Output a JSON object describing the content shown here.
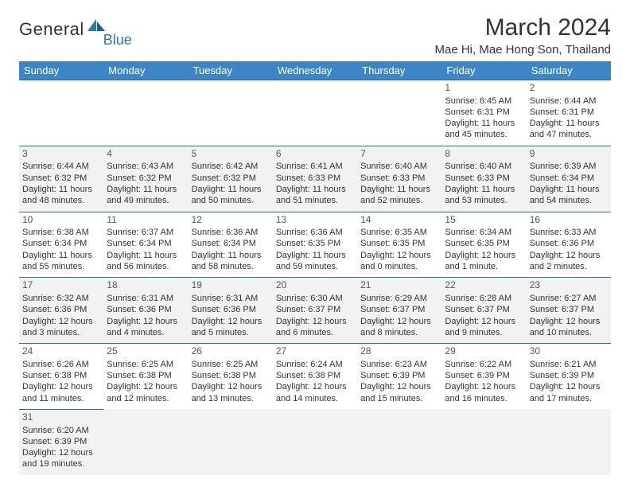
{
  "brand": {
    "general": "Genera",
    "l": "l",
    "blue": "Blue"
  },
  "title": "March 2024",
  "location": "Mae Hi, Mae Hong Son, Thailand",
  "weekdays": [
    "Sunday",
    "Monday",
    "Tuesday",
    "Wednesday",
    "Thursday",
    "Friday",
    "Saturday"
  ],
  "colors": {
    "header_bg": "#3d86c6",
    "header_fg": "#ffffff",
    "row_alt_bg": "#f2f2f2",
    "divider": "#2a6aa8",
    "brand_blue": "#2a7ab0"
  },
  "typography": {
    "title_fontsize": 30,
    "location_fontsize": 15,
    "weekday_fontsize": 13,
    "cell_fontsize": 11
  },
  "weeks": [
    [
      null,
      null,
      null,
      null,
      null,
      {
        "n": "1",
        "sr": "Sunrise: 6:45 AM",
        "ss": "Sunset: 6:31 PM",
        "dl": "Daylight: 11 hours and 45 minutes."
      },
      {
        "n": "2",
        "sr": "Sunrise: 6:44 AM",
        "ss": "Sunset: 6:31 PM",
        "dl": "Daylight: 11 hours and 47 minutes."
      }
    ],
    [
      {
        "n": "3",
        "sr": "Sunrise: 6:44 AM",
        "ss": "Sunset: 6:32 PM",
        "dl": "Daylight: 11 hours and 48 minutes."
      },
      {
        "n": "4",
        "sr": "Sunrise: 6:43 AM",
        "ss": "Sunset: 6:32 PM",
        "dl": "Daylight: 11 hours and 49 minutes."
      },
      {
        "n": "5",
        "sr": "Sunrise: 6:42 AM",
        "ss": "Sunset: 6:32 PM",
        "dl": "Daylight: 11 hours and 50 minutes."
      },
      {
        "n": "6",
        "sr": "Sunrise: 6:41 AM",
        "ss": "Sunset: 6:33 PM",
        "dl": "Daylight: 11 hours and 51 minutes."
      },
      {
        "n": "7",
        "sr": "Sunrise: 6:40 AM",
        "ss": "Sunset: 6:33 PM",
        "dl": "Daylight: 11 hours and 52 minutes."
      },
      {
        "n": "8",
        "sr": "Sunrise: 6:40 AM",
        "ss": "Sunset: 6:33 PM",
        "dl": "Daylight: 11 hours and 53 minutes."
      },
      {
        "n": "9",
        "sr": "Sunrise: 6:39 AM",
        "ss": "Sunset: 6:34 PM",
        "dl": "Daylight: 11 hours and 54 minutes."
      }
    ],
    [
      {
        "n": "10",
        "sr": "Sunrise: 6:38 AM",
        "ss": "Sunset: 6:34 PM",
        "dl": "Daylight: 11 hours and 55 minutes."
      },
      {
        "n": "11",
        "sr": "Sunrise: 6:37 AM",
        "ss": "Sunset: 6:34 PM",
        "dl": "Daylight: 11 hours and 56 minutes."
      },
      {
        "n": "12",
        "sr": "Sunrise: 6:36 AM",
        "ss": "Sunset: 6:34 PM",
        "dl": "Daylight: 11 hours and 58 minutes."
      },
      {
        "n": "13",
        "sr": "Sunrise: 6:36 AM",
        "ss": "Sunset: 6:35 PM",
        "dl": "Daylight: 11 hours and 59 minutes."
      },
      {
        "n": "14",
        "sr": "Sunrise: 6:35 AM",
        "ss": "Sunset: 6:35 PM",
        "dl": "Daylight: 12 hours and 0 minutes."
      },
      {
        "n": "15",
        "sr": "Sunrise: 6:34 AM",
        "ss": "Sunset: 6:35 PM",
        "dl": "Daylight: 12 hours and 1 minute."
      },
      {
        "n": "16",
        "sr": "Sunrise: 6:33 AM",
        "ss": "Sunset: 6:36 PM",
        "dl": "Daylight: 12 hours and 2 minutes."
      }
    ],
    [
      {
        "n": "17",
        "sr": "Sunrise: 6:32 AM",
        "ss": "Sunset: 6:36 PM",
        "dl": "Daylight: 12 hours and 3 minutes."
      },
      {
        "n": "18",
        "sr": "Sunrise: 6:31 AM",
        "ss": "Sunset: 6:36 PM",
        "dl": "Daylight: 12 hours and 4 minutes."
      },
      {
        "n": "19",
        "sr": "Sunrise: 6:31 AM",
        "ss": "Sunset: 6:36 PM",
        "dl": "Daylight: 12 hours and 5 minutes."
      },
      {
        "n": "20",
        "sr": "Sunrise: 6:30 AM",
        "ss": "Sunset: 6:37 PM",
        "dl": "Daylight: 12 hours and 6 minutes."
      },
      {
        "n": "21",
        "sr": "Sunrise: 6:29 AM",
        "ss": "Sunset: 6:37 PM",
        "dl": "Daylight: 12 hours and 8 minutes."
      },
      {
        "n": "22",
        "sr": "Sunrise: 6:28 AM",
        "ss": "Sunset: 6:37 PM",
        "dl": "Daylight: 12 hours and 9 minutes."
      },
      {
        "n": "23",
        "sr": "Sunrise: 6:27 AM",
        "ss": "Sunset: 6:37 PM",
        "dl": "Daylight: 12 hours and 10 minutes."
      }
    ],
    [
      {
        "n": "24",
        "sr": "Sunrise: 6:26 AM",
        "ss": "Sunset: 6:38 PM",
        "dl": "Daylight: 12 hours and 11 minutes."
      },
      {
        "n": "25",
        "sr": "Sunrise: 6:25 AM",
        "ss": "Sunset: 6:38 PM",
        "dl": "Daylight: 12 hours and 12 minutes."
      },
      {
        "n": "26",
        "sr": "Sunrise: 6:25 AM",
        "ss": "Sunset: 6:38 PM",
        "dl": "Daylight: 12 hours and 13 minutes."
      },
      {
        "n": "27",
        "sr": "Sunrise: 6:24 AM",
        "ss": "Sunset: 6:38 PM",
        "dl": "Daylight: 12 hours and 14 minutes."
      },
      {
        "n": "28",
        "sr": "Sunrise: 6:23 AM",
        "ss": "Sunset: 6:39 PM",
        "dl": "Daylight: 12 hours and 15 minutes."
      },
      {
        "n": "29",
        "sr": "Sunrise: 6:22 AM",
        "ss": "Sunset: 6:39 PM",
        "dl": "Daylight: 12 hours and 16 minutes."
      },
      {
        "n": "30",
        "sr": "Sunrise: 6:21 AM",
        "ss": "Sunset: 6:39 PM",
        "dl": "Daylight: 12 hours and 17 minutes."
      }
    ],
    [
      {
        "n": "31",
        "sr": "Sunrise: 6:20 AM",
        "ss": "Sunset: 6:39 PM",
        "dl": "Daylight: 12 hours and 19 minutes."
      },
      null,
      null,
      null,
      null,
      null,
      null
    ]
  ]
}
